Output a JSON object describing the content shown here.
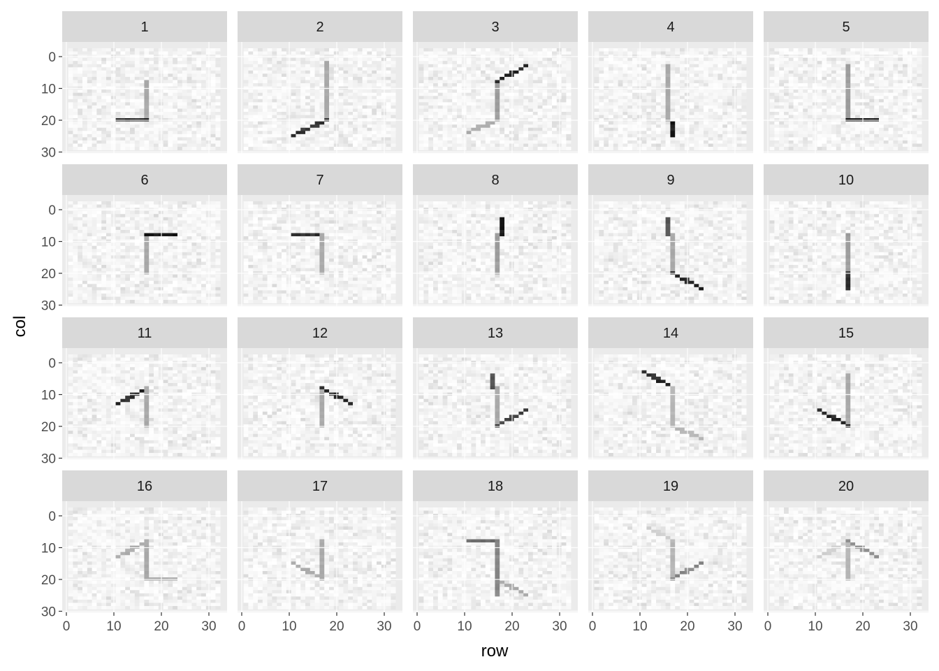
{
  "chart_data": {
    "type": "heatmap",
    "facet_layout": "4 rows x 5 columns",
    "xlabel": "row",
    "ylabel": "col",
    "x_ticks": [
      0,
      10,
      20,
      30
    ],
    "y_ticks": [
      0,
      10,
      20,
      30
    ],
    "xlim": [
      -1,
      33
    ],
    "ylim": [
      33,
      -5
    ],
    "y_reversed": true,
    "grid": true,
    "legend": "none",
    "fill_scale": "white (low) to black (high)",
    "background_noise_level": 0.12,
    "panels": [
      {
        "label": "1",
        "segments": [
          [
            16,
            10,
            16,
            22,
            0.35
          ],
          [
            10,
            22,
            16,
            22,
            0.9
          ]
        ]
      },
      {
        "label": "2",
        "segments": [
          [
            17,
            4,
            17,
            22,
            0.35
          ],
          [
            10,
            27,
            17,
            22,
            0.85
          ]
        ]
      },
      {
        "label": "3",
        "segments": [
          [
            16,
            10,
            16,
            22,
            0.4
          ],
          [
            16,
            10,
            22,
            5,
            0.9
          ],
          [
            10,
            26,
            16,
            22,
            0.35
          ]
        ]
      },
      {
        "label": "4",
        "segments": [
          [
            15,
            5,
            15,
            22,
            0.35
          ],
          [
            16,
            23,
            16,
            27,
            0.95
          ]
        ]
      },
      {
        "label": "5",
        "segments": [
          [
            16,
            5,
            16,
            22,
            0.4
          ],
          [
            16,
            22,
            22,
            22,
            0.95
          ]
        ]
      },
      {
        "label": "6",
        "segments": [
          [
            16,
            10,
            16,
            22,
            0.35
          ],
          [
            16,
            10,
            22,
            10,
            0.95
          ]
        ]
      },
      {
        "label": "7",
        "segments": [
          [
            10,
            10,
            15,
            10,
            0.85
          ],
          [
            16,
            10,
            16,
            22,
            0.35
          ]
        ]
      },
      {
        "label": "8",
        "segments": [
          [
            16,
            10,
            16,
            22,
            0.4
          ],
          [
            17,
            5,
            17,
            10,
            0.95
          ]
        ]
      },
      {
        "label": "9",
        "segments": [
          [
            15,
            5,
            15,
            10,
            0.7
          ],
          [
            16,
            10,
            16,
            22,
            0.35
          ],
          [
            16,
            22,
            22,
            27,
            0.9
          ]
        ]
      },
      {
        "label": "10",
        "segments": [
          [
            16,
            10,
            16,
            22,
            0.4
          ],
          [
            16,
            22,
            16,
            27,
            0.85
          ]
        ]
      },
      {
        "label": "11",
        "segments": [
          [
            10,
            15,
            15,
            11,
            0.9
          ],
          [
            16,
            10,
            16,
            22,
            0.35
          ]
        ]
      },
      {
        "label": "12",
        "segments": [
          [
            16,
            10,
            16,
            22,
            0.35
          ],
          [
            16,
            10,
            22,
            15,
            0.9
          ]
        ]
      },
      {
        "label": "13",
        "segments": [
          [
            15,
            6,
            15,
            10,
            0.7
          ],
          [
            16,
            10,
            16,
            22,
            0.35
          ],
          [
            16,
            22,
            22,
            17,
            0.8
          ]
        ]
      },
      {
        "label": "14",
        "segments": [
          [
            10,
            5,
            15,
            9,
            0.9
          ],
          [
            16,
            10,
            16,
            22,
            0.3
          ],
          [
            16,
            22,
            22,
            26,
            0.3
          ]
        ]
      },
      {
        "label": "15",
        "segments": [
          [
            16,
            6,
            16,
            22,
            0.35
          ],
          [
            10,
            17,
            16,
            22,
            0.9
          ]
        ]
      },
      {
        "label": "16",
        "segments": [
          [
            10,
            15,
            15,
            11,
            0.35
          ],
          [
            16,
            10,
            16,
            22,
            0.35
          ],
          [
            16,
            22,
            22,
            22,
            0.35
          ]
        ]
      },
      {
        "label": "17",
        "segments": [
          [
            16,
            10,
            16,
            22,
            0.35
          ],
          [
            10,
            17,
            16,
            22,
            0.35
          ]
        ]
      },
      {
        "label": "18",
        "segments": [
          [
            10,
            10,
            15,
            10,
            0.6
          ],
          [
            16,
            10,
            16,
            27,
            0.5
          ],
          [
            16,
            22,
            22,
            27,
            0.35
          ]
        ]
      },
      {
        "label": "19",
        "segments": [
          [
            16,
            10,
            16,
            22,
            0.3
          ],
          [
            16,
            22,
            22,
            17,
            0.5
          ],
          [
            11,
            6,
            15,
            9,
            0.2
          ]
        ]
      },
      {
        "label": "20",
        "segments": [
          [
            16,
            10,
            16,
            22,
            0.3
          ],
          [
            16,
            10,
            22,
            15,
            0.45
          ],
          [
            10,
            15,
            15,
            11,
            0.2
          ]
        ]
      }
    ]
  }
}
